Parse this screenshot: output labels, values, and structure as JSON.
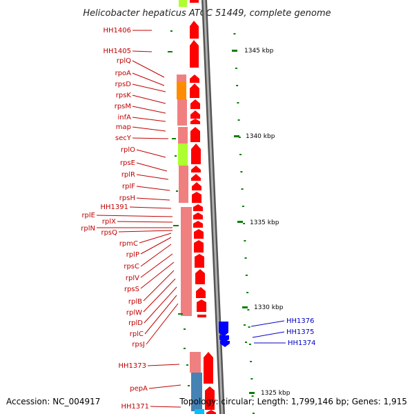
{
  "title": "Helicobacter hepaticus ATCC 51449, complete genome",
  "footer": {
    "accession": "Accession: NC_004917",
    "topology": "Topology: circular; Length: 1,799,146 bp; Genes: 1,915"
  },
  "scale": {
    "ticks": [
      "1345 kbp",
      "1340 kbp",
      "1335 kbp",
      "1330 kbp",
      "1325 kbp"
    ]
  },
  "colors": {
    "label_red": "#c00000",
    "label_blue": "#0000c0",
    "gene_red": "#ff0000",
    "gene_blue": "#0000ff",
    "band_pink": "#f08080",
    "band_orange": "#ff8c00",
    "band_green": "#adff2f",
    "band_steelblue": "#4682b4",
    "backbone": "#808080"
  },
  "genes_left": [
    "HH1406",
    "HH1405",
    "rplQ",
    "rpoA",
    "rpsD",
    "rpsK",
    "rpsM",
    "infA",
    "map",
    "secY",
    "rplO",
    "rpsE",
    "rplR",
    "rplF",
    "rpsH",
    "HH1391",
    "rplE",
    "rplX",
    "rplN",
    "rpsQ",
    "rpmC",
    "rplP",
    "rpsC",
    "rplV",
    "rpsS",
    "rplB",
    "rplW",
    "rplD",
    "rplC",
    "rpsJ",
    "HH1373",
    "pepA",
    "HH1371"
  ],
  "genes_right": [
    "HH1376",
    "HH1375",
    "HH1374"
  ]
}
